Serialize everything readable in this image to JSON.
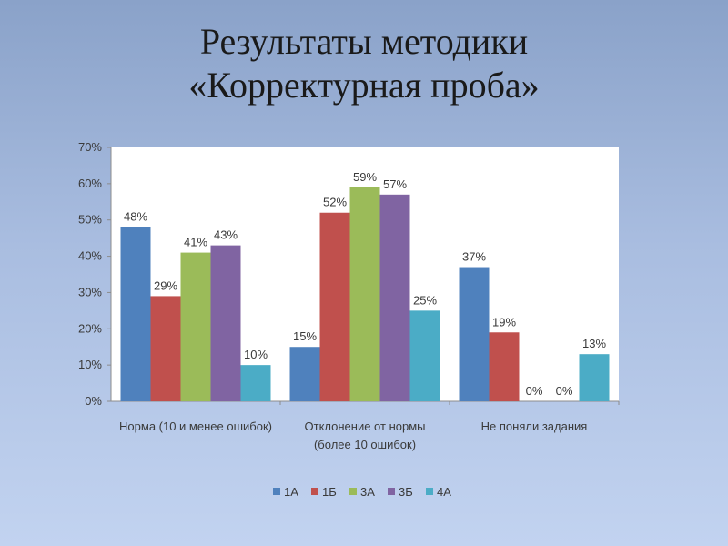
{
  "slide": {
    "title_line1": "Результаты методики",
    "title_line2": "«Корректурная проба»"
  },
  "chart_data": {
    "type": "bar",
    "title": "Результаты методики «Корректурная проба»",
    "categories": [
      [
        "Норма (10 и менее  ошибок)"
      ],
      [
        "Отклонение от нормы",
        "(более 10 ошибок)"
      ],
      [
        "Не поняли задания"
      ]
    ],
    "series": [
      {
        "name": "1А",
        "color": "#4f81bd",
        "values": [
          48,
          15,
          37
        ]
      },
      {
        "name": "1Б",
        "color": "#c0504d",
        "values": [
          29,
          52,
          19
        ]
      },
      {
        "name": "3А",
        "color": "#9bbb59",
        "values": [
          41,
          59,
          0
        ]
      },
      {
        "name": "3Б",
        "color": "#8064a2",
        "values": [
          43,
          57,
          0
        ]
      },
      {
        "name": "4А",
        "color": "#4bacc6",
        "values": [
          10,
          25,
          13
        ]
      }
    ],
    "ylim": [
      0,
      70
    ],
    "ytick_step": 10,
    "value_suffix": "%",
    "legend_position": "bottom",
    "grid": false
  }
}
